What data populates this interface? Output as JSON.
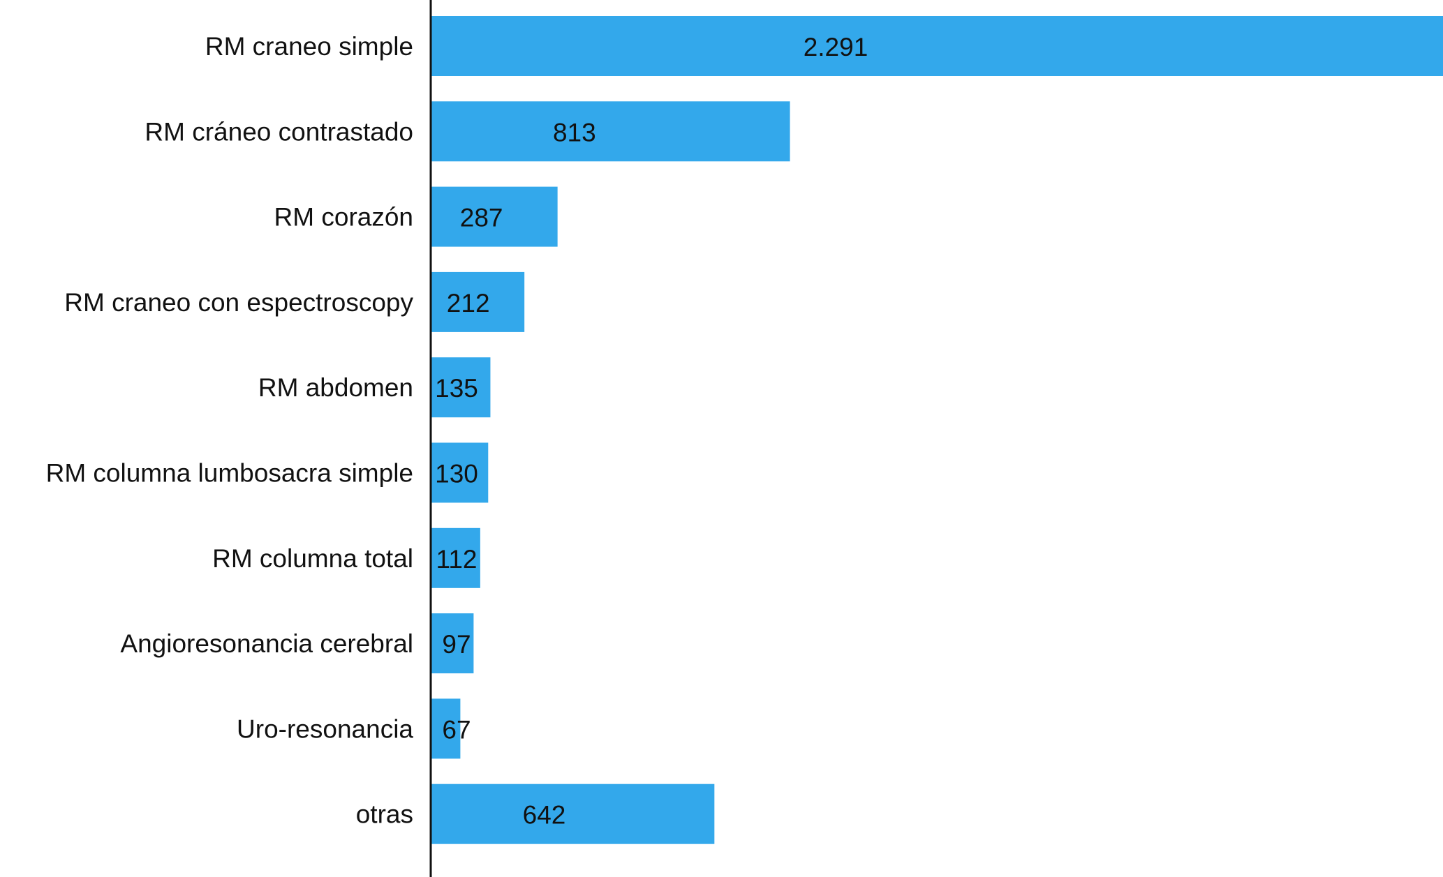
{
  "chart_data": {
    "type": "bar",
    "orientation": "horizontal",
    "categories": [
      "RM craneo simple",
      "RM cráneo contrastado",
      "RM corazón",
      "RM craneo con espectroscopy",
      "RM abdomen",
      "RM columna lumbosacra simple",
      "RM columna total",
      "Angioresonancia cerebral",
      "Uro-resonancia",
      "otras"
    ],
    "values": [
      2291,
      813,
      287,
      212,
      135,
      130,
      112,
      97,
      67,
      642
    ],
    "value_labels": [
      "2.291",
      "813",
      "287",
      "212",
      "135",
      "130",
      "112",
      "97",
      "67",
      "642"
    ],
    "xlim": [
      0,
      2291
    ],
    "bar_color": "#33a8eb",
    "axis_color": "#111111",
    "grid": false,
    "legend": "none"
  }
}
